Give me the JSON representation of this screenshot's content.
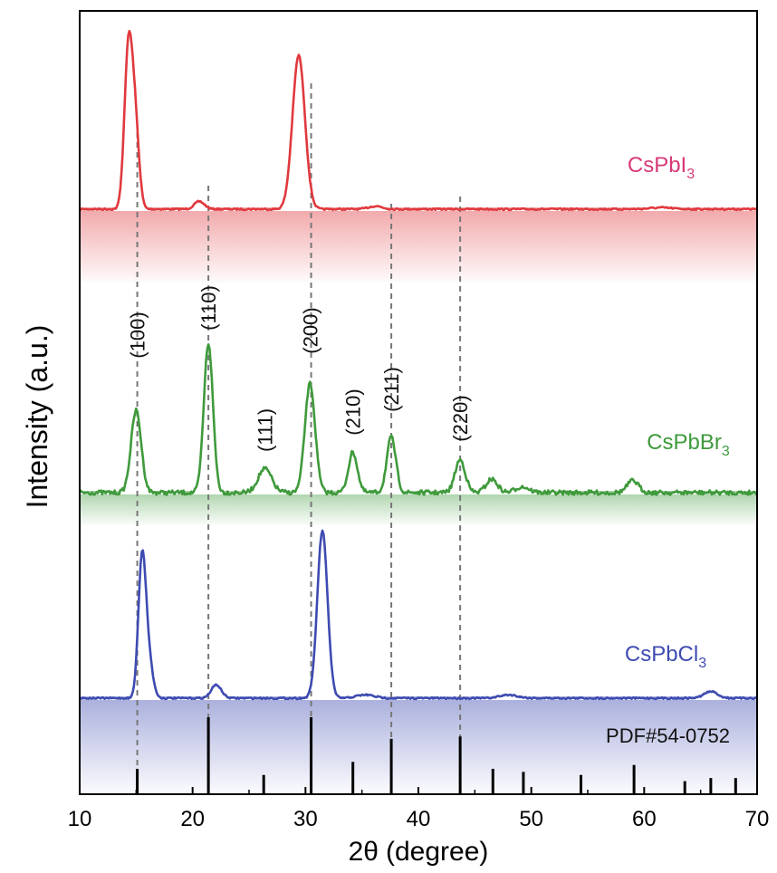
{
  "chart_data": {
    "type": "line",
    "xlabel_prefix": "2θ",
    "xlabel_suffix": "(degree)",
    "ylabel": "Intensity (a.u.)",
    "xlim": [
      10,
      70
    ],
    "x_ticks": [
      10,
      20,
      30,
      40,
      50,
      60,
      70
    ],
    "x_tick_labels": [
      "10",
      "20",
      "30",
      "40",
      "50",
      "60",
      "70"
    ],
    "series": [
      {
        "name_main": "CsPbI",
        "name_sub": "3",
        "color": "#e0393e",
        "label_color": "#d63a78",
        "peaks": [
          [
            14.3,
            1.0,
            0.35
          ],
          [
            14.9,
            0.55,
            0.35
          ],
          [
            20.6,
            0.05,
            0.45
          ],
          [
            29.4,
            1.0,
            0.55
          ],
          [
            36.2,
            0.02,
            0.6
          ],
          [
            61.5,
            0.01,
            1.0
          ]
        ]
      },
      {
        "name_main": "CsPbBr",
        "name_sub": "3",
        "color": "#3f9a3c",
        "label_color": "#3f9a3c",
        "peaks": [
          [
            15.0,
            0.55,
            0.45
          ],
          [
            21.4,
            1.0,
            0.4
          ],
          [
            26.4,
            0.16,
            0.6
          ],
          [
            30.4,
            0.73,
            0.45
          ],
          [
            34.2,
            0.27,
            0.4
          ],
          [
            37.6,
            0.37,
            0.4
          ],
          [
            43.7,
            0.22,
            0.45
          ],
          [
            46.5,
            0.09,
            0.5
          ],
          [
            49.2,
            0.04,
            0.6
          ],
          [
            59.0,
            0.08,
            0.5
          ]
        ]
      },
      {
        "name_main": "CsPbCl",
        "name_sub": "3",
        "color": "#3e4bb1",
        "label_color": "#3e4bb1",
        "peaks": [
          [
            15.5,
            0.75,
            0.32
          ],
          [
            16.0,
            0.28,
            0.4
          ],
          [
            22.1,
            0.08,
            0.45
          ],
          [
            31.5,
            1.0,
            0.45
          ],
          [
            35.3,
            0.02,
            0.8
          ],
          [
            48.0,
            0.02,
            0.8
          ],
          [
            65.9,
            0.04,
            0.6
          ]
        ]
      }
    ],
    "reference": {
      "label": "PDF#54-0752",
      "lines": [
        [
          15.1,
          0.33
        ],
        [
          21.4,
          1.0
        ],
        [
          26.3,
          0.25
        ],
        [
          30.5,
          1.0
        ],
        [
          34.2,
          0.42
        ],
        [
          37.6,
          0.72
        ],
        [
          43.7,
          0.75
        ],
        [
          46.6,
          0.33
        ],
        [
          49.3,
          0.29
        ],
        [
          54.4,
          0.25
        ],
        [
          59.1,
          0.38
        ],
        [
          63.6,
          0.17
        ],
        [
          65.9,
          0.21
        ],
        [
          68.1,
          0.21
        ]
      ]
    },
    "guide_lines": [
      15.1,
      21.4,
      30.5,
      37.6,
      43.7
    ],
    "hkl_labels": [
      {
        "text": "(100)",
        "x": 15.1
      },
      {
        "text": "(110)",
        "x": 21.4
      },
      {
        "text": "(111)",
        "x": 26.4
      },
      {
        "text": "(200)",
        "x": 30.4
      },
      {
        "text": "(210)",
        "x": 34.2
      },
      {
        "text": "(211)",
        "x": 37.6
      },
      {
        "text": "(220)",
        "x": 43.7
      }
    ],
    "grid": false,
    "legend": "none"
  }
}
